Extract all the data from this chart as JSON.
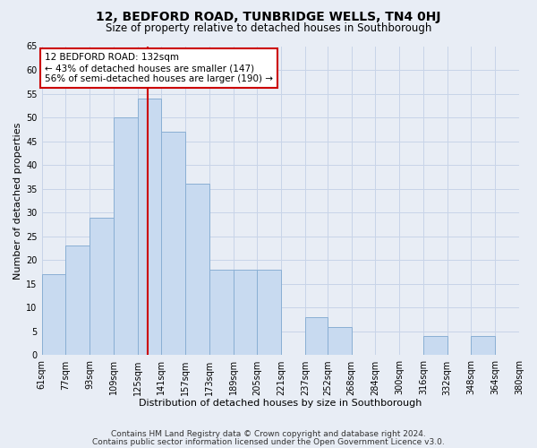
{
  "title": "12, BEDFORD ROAD, TUNBRIDGE WELLS, TN4 0HJ",
  "subtitle": "Size of property relative to detached houses in Southborough",
  "xlabel": "Distribution of detached houses by size in Southborough",
  "ylabel": "Number of detached properties",
  "footnote1": "Contains HM Land Registry data © Crown copyright and database right 2024.",
  "footnote2": "Contains public sector information licensed under the Open Government Licence v3.0.",
  "annotation_line1": "12 BEDFORD ROAD: 132sqm",
  "annotation_line2": "← 43% of detached houses are smaller (147)",
  "annotation_line3": "56% of semi-detached houses are larger (190) →",
  "bin_edges": [
    61,
    77,
    93,
    109,
    125,
    141,
    157,
    173,
    189,
    205,
    221,
    237,
    252,
    268,
    284,
    300,
    316,
    332,
    348,
    364,
    380
  ],
  "bar_heights": [
    17,
    23,
    29,
    50,
    54,
    47,
    36,
    18,
    18,
    18,
    0,
    8,
    6,
    0,
    0,
    0,
    4,
    0,
    4,
    0
  ],
  "bar_color": "#c8daf0",
  "bar_edge_color": "#8aafd4",
  "grid_color": "#c8d4e8",
  "vline_color": "#cc0000",
  "vline_x": 132,
  "annotation_box_color": "#cc0000",
  "ylim": [
    0,
    65
  ],
  "yticks": [
    0,
    5,
    10,
    15,
    20,
    25,
    30,
    35,
    40,
    45,
    50,
    55,
    60,
    65
  ],
  "bg_color": "#e8edf5",
  "title_fontsize": 10,
  "subtitle_fontsize": 8.5,
  "axis_label_fontsize": 8,
  "tick_fontsize": 7,
  "annotation_fontsize": 7.5,
  "footnote_fontsize": 6.5,
  "ylabel_fontsize": 8
}
